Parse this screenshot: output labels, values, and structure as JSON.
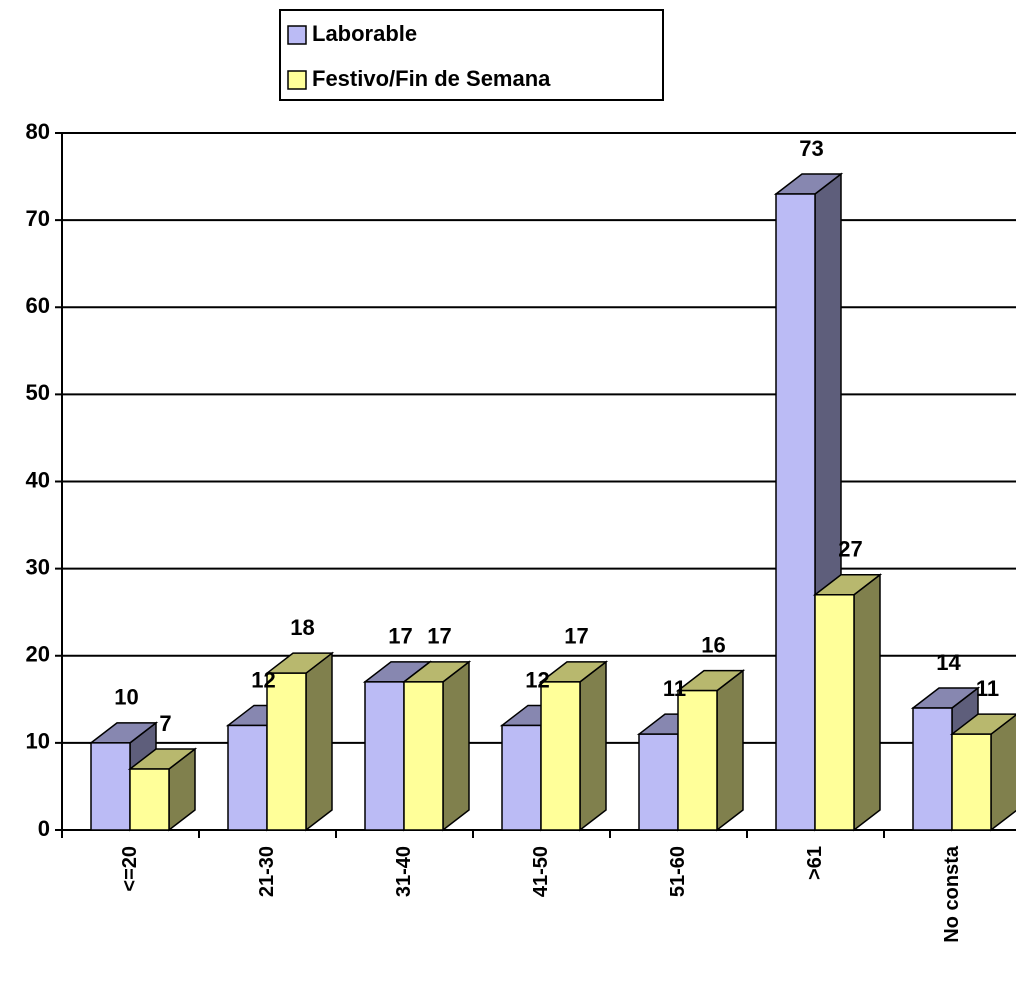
{
  "chart_data": {
    "type": "bar3d",
    "categories": [
      "<=20",
      "21-30",
      "31-40",
      "41-50",
      "51-60",
      ">61",
      "No consta"
    ],
    "series": [
      {
        "name": "Laborable",
        "color": "#bbbbf5",
        "values": [
          10,
          12,
          17,
          12,
          11,
          73,
          14
        ]
      },
      {
        "name": "Festivo/Fin de Semana",
        "color": "#ffff99",
        "values": [
          7,
          18,
          17,
          17,
          16,
          27,
          11
        ]
      }
    ],
    "ylim": [
      0,
      80
    ],
    "yticks": [
      0,
      10,
      20,
      30,
      40,
      50,
      60,
      70,
      80
    ],
    "grid": true,
    "legend": "top"
  }
}
